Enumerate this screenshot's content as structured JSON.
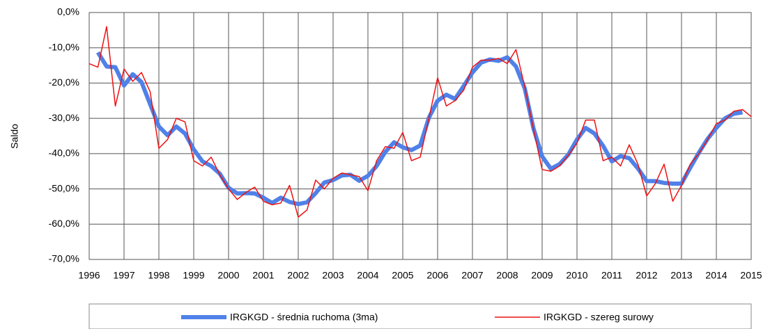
{
  "chart_data": {
    "type": "line",
    "ylabel": "Saldo",
    "x": [
      1996,
      1996.25,
      1996.5,
      1996.75,
      1997,
      1997.25,
      1997.5,
      1997.75,
      1998,
      1998.25,
      1998.5,
      1998.75,
      1999,
      1999.25,
      1999.5,
      1999.75,
      2000,
      2000.25,
      2000.5,
      2000.75,
      2001,
      2001.25,
      2001.5,
      2001.75,
      2002,
      2002.25,
      2002.5,
      2002.75,
      2003,
      2003.25,
      2003.5,
      2003.75,
      2004,
      2004.25,
      2004.5,
      2004.75,
      2005,
      2005.25,
      2005.5,
      2005.75,
      2006,
      2006.25,
      2006.5,
      2006.75,
      2007,
      2007.25,
      2007.5,
      2007.75,
      2008,
      2008.25,
      2008.5,
      2008.75,
      2009,
      2009.25,
      2009.5,
      2009.75,
      2010,
      2010.25,
      2010.5,
      2010.75,
      2011,
      2011.25,
      2011.5,
      2011.75,
      2012,
      2012.25,
      2012.5,
      2012.75,
      2013,
      2013.25,
      2013.5,
      2013.75,
      2014,
      2014.25,
      2014.5,
      2014.75,
      2015
    ],
    "series": [
      {
        "name": "IRGKGD - średnia ruchoma (3ma)",
        "color": "#4f81e8",
        "width": 6,
        "values": [
          null,
          -11.3,
          -15.3,
          -15.5,
          -20.7,
          -17.5,
          -19.7,
          -26,
          -32.3,
          -34.8,
          -32.3,
          -34.3,
          -38.8,
          -42.2,
          -43.5,
          -45.7,
          -49.7,
          -51.3,
          -51.2,
          -51.3,
          -52.5,
          -54,
          -52.5,
          -53.7,
          -54.3,
          -53.8,
          -51.2,
          -48.2,
          -47.5,
          -46.2,
          -46,
          -47.7,
          -46.3,
          -43.5,
          -39.5,
          -36.8,
          -38.2,
          -39,
          -37.7,
          -29.8,
          -25,
          -23.3,
          -24.5,
          -20.8,
          -17,
          -14.2,
          -13.3,
          -13.7,
          -12.7,
          -15.3,
          -21.5,
          -32.8,
          -40.8,
          -44.3,
          -43,
          -40.3,
          -36,
          -32.7,
          -34.3,
          -37.8,
          -42.2,
          -40.7,
          -41.3,
          -44.2,
          -47.8,
          -47.8,
          -48.3,
          -48.5,
          -48.5,
          -44,
          -39.7,
          -35.8,
          -32.7,
          -30,
          -28.7,
          -28.3,
          null
        ]
      },
      {
        "name": "IRGKGD - szereg surowy",
        "color": "#ee1111",
        "width": 1.5,
        "values": [
          -14.5,
          -15.5,
          -4,
          -26.5,
          -16,
          -19.5,
          -17,
          -22.5,
          -38.5,
          -36,
          -30,
          -31,
          -42,
          -43.5,
          -41,
          -46,
          -50,
          -53,
          -51,
          -49.5,
          -53.5,
          -54.5,
          -54,
          -49,
          -58,
          -56,
          -47.5,
          -50,
          -47,
          -45.5,
          -46,
          -46.5,
          -50.5,
          -42,
          -38,
          -38.5,
          -34,
          -42,
          -41,
          -30,
          -18.5,
          -26.5,
          -25,
          -22,
          -15.5,
          -13.5,
          -13.5,
          -13,
          -14.5,
          -10.5,
          -21,
          -33,
          -44.5,
          -45,
          -43.5,
          -40.5,
          -37,
          -30.5,
          -30.5,
          -42,
          -41,
          -43.5,
          -37.5,
          -43,
          -52,
          -48.5,
          -43,
          -53.5,
          -49,
          -43,
          -40,
          -36,
          -31.5,
          -30.5,
          -28,
          -27.5,
          -29.5
        ]
      }
    ],
    "xlim": [
      1996,
      2015
    ],
    "xticks": [
      1996,
      1997,
      1998,
      1999,
      2000,
      2001,
      2002,
      2003,
      2004,
      2005,
      2006,
      2007,
      2008,
      2009,
      2010,
      2011,
      2012,
      2013,
      2014,
      2015
    ],
    "ylim": [
      -70,
      0
    ],
    "yticks": [
      {
        "value": 0,
        "label": "0,0%"
      },
      {
        "value": -10,
        "label": "-10,0%"
      },
      {
        "value": -20,
        "label": "-20,0%"
      },
      {
        "value": -30,
        "label": "-30,0%"
      },
      {
        "value": -40,
        "label": "-40,0%"
      },
      {
        "value": -50,
        "label": "-50,0%"
      },
      {
        "value": -60,
        "label": "-60,0%"
      },
      {
        "value": -70,
        "label": "-70,0%"
      }
    ],
    "grid": true,
    "legend": "bottom"
  }
}
